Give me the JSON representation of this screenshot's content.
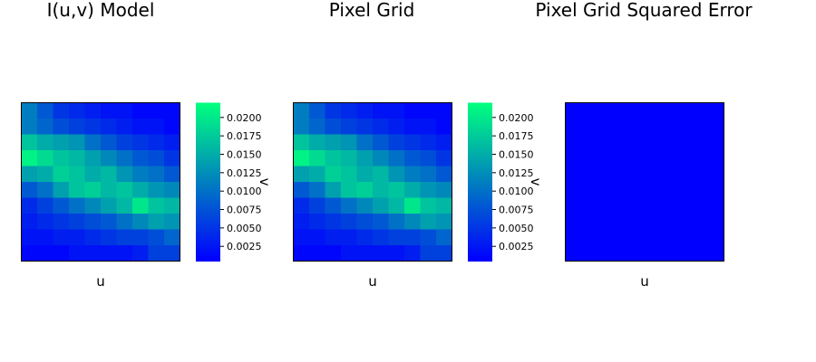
{
  "chart_data": [
    {
      "type": "heatmap",
      "title": "I(u,v) Model",
      "xlabel": "u",
      "ylabel": "v",
      "grid": false,
      "colormap": "winter",
      "clim": [
        0.0005,
        0.022
      ],
      "colorbar_ticks": [
        "0.0025",
        "0.0050",
        "0.0075",
        "0.0100",
        "0.0125",
        "0.0150",
        "0.0175",
        "0.0200"
      ],
      "z": [
        [
          0.011,
          0.008,
          0.005,
          0.004,
          0.003,
          0.002,
          0.002,
          0.001,
          0.001,
          0.001
        ],
        [
          0.011,
          0.009,
          0.007,
          0.006,
          0.005,
          0.004,
          0.003,
          0.002,
          0.002,
          0.001
        ],
        [
          0.017,
          0.015,
          0.014,
          0.013,
          0.01,
          0.008,
          0.006,
          0.005,
          0.004,
          0.003
        ],
        [
          0.021,
          0.019,
          0.017,
          0.016,
          0.014,
          0.012,
          0.01,
          0.008,
          0.007,
          0.005
        ],
        [
          0.014,
          0.015,
          0.018,
          0.017,
          0.015,
          0.016,
          0.013,
          0.011,
          0.01,
          0.008
        ],
        [
          0.008,
          0.01,
          0.014,
          0.017,
          0.018,
          0.016,
          0.017,
          0.015,
          0.013,
          0.012
        ],
        [
          0.004,
          0.006,
          0.008,
          0.01,
          0.012,
          0.014,
          0.016,
          0.02,
          0.017,
          0.016
        ],
        [
          0.003,
          0.004,
          0.005,
          0.006,
          0.007,
          0.008,
          0.01,
          0.012,
          0.014,
          0.013
        ],
        [
          0.002,
          0.002,
          0.003,
          0.003,
          0.004,
          0.005,
          0.006,
          0.006,
          0.007,
          0.009
        ],
        [
          0.001,
          0.001,
          0.001,
          0.002,
          0.002,
          0.002,
          0.002,
          0.003,
          0.006,
          0.006
        ]
      ]
    },
    {
      "type": "heatmap",
      "title": "Pixel Grid",
      "xlabel": "u",
      "ylabel": "v",
      "grid": false,
      "colormap": "winter",
      "clim": [
        0.0005,
        0.022
      ],
      "colorbar_ticks": [
        "0.0025",
        "0.0050",
        "0.0075",
        "0.0100",
        "0.0125",
        "0.0150",
        "0.0175",
        "0.0200"
      ],
      "z": [
        [
          0.011,
          0.008,
          0.005,
          0.004,
          0.003,
          0.002,
          0.002,
          0.001,
          0.001,
          0.001
        ],
        [
          0.011,
          0.009,
          0.007,
          0.006,
          0.005,
          0.004,
          0.003,
          0.002,
          0.002,
          0.001
        ],
        [
          0.017,
          0.015,
          0.014,
          0.013,
          0.01,
          0.008,
          0.006,
          0.005,
          0.004,
          0.003
        ],
        [
          0.021,
          0.019,
          0.017,
          0.016,
          0.014,
          0.012,
          0.01,
          0.008,
          0.007,
          0.005
        ],
        [
          0.014,
          0.015,
          0.018,
          0.017,
          0.015,
          0.016,
          0.013,
          0.011,
          0.01,
          0.008
        ],
        [
          0.008,
          0.01,
          0.014,
          0.017,
          0.018,
          0.016,
          0.017,
          0.015,
          0.013,
          0.012
        ],
        [
          0.004,
          0.006,
          0.008,
          0.01,
          0.012,
          0.014,
          0.016,
          0.02,
          0.017,
          0.016
        ],
        [
          0.003,
          0.004,
          0.005,
          0.006,
          0.007,
          0.008,
          0.01,
          0.012,
          0.014,
          0.013
        ],
        [
          0.002,
          0.002,
          0.003,
          0.003,
          0.004,
          0.005,
          0.006,
          0.006,
          0.007,
          0.009
        ],
        [
          0.001,
          0.001,
          0.001,
          0.002,
          0.002,
          0.002,
          0.002,
          0.003,
          0.006,
          0.006
        ]
      ]
    },
    {
      "type": "heatmap",
      "title": "Pixel Grid Squared Error",
      "xlabel": "u",
      "ylabel": "",
      "grid": false,
      "colormap": "winter",
      "uniform_color": "#0000ff",
      "z_note_value": 0
    }
  ]
}
